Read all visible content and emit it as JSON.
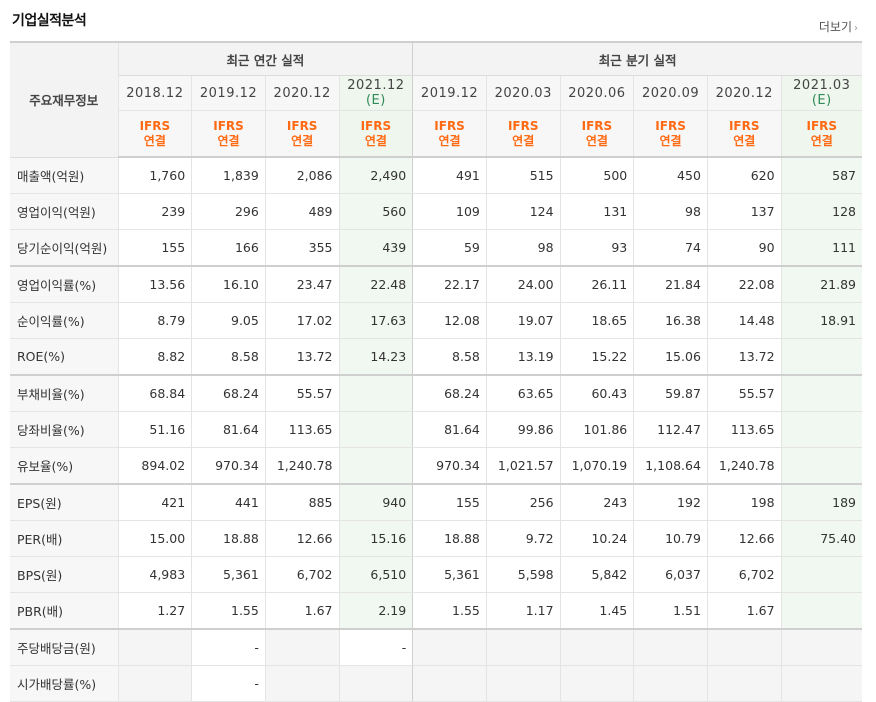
{
  "header": {
    "title": "기업실적분석",
    "more_label": "더보기",
    "more_icon": "chevron-right-icon"
  },
  "table": {
    "row_label_header": "주요재무정보",
    "group_annual": "최근 연간 실적",
    "group_quarter": "최근 분기 실적",
    "annual_periods": [
      "2018.12",
      "2019.12",
      "2020.12",
      "2021.12"
    ],
    "quarter_periods": [
      "2019.12",
      "2020.03",
      "2020.06",
      "2020.09",
      "2020.12",
      "2021.03"
    ],
    "estimate_mark": "(E)",
    "accounting_std": "IFRS",
    "consolidation": "연결",
    "rows": [
      {
        "label": "매출액(억원)",
        "values": [
          "1,760",
          "1,839",
          "2,086",
          "2,490",
          "491",
          "515",
          "500",
          "450",
          "620",
          "587"
        ]
      },
      {
        "label": "영업이익(억원)",
        "values": [
          "239",
          "296",
          "489",
          "560",
          "109",
          "124",
          "131",
          "98",
          "137",
          "128"
        ]
      },
      {
        "label": "당기순이익(억원)",
        "values": [
          "155",
          "166",
          "355",
          "439",
          "59",
          "98",
          "93",
          "74",
          "90",
          "111"
        ]
      },
      {
        "label": "영업이익률(%)",
        "values": [
          "13.56",
          "16.10",
          "23.47",
          "22.48",
          "22.17",
          "24.00",
          "26.11",
          "21.84",
          "22.08",
          "21.89"
        ]
      },
      {
        "label": "순이익률(%)",
        "values": [
          "8.79",
          "9.05",
          "17.02",
          "17.63",
          "12.08",
          "19.07",
          "18.65",
          "16.38",
          "14.48",
          "18.91"
        ]
      },
      {
        "label": "ROE(%)",
        "values": [
          "8.82",
          "8.58",
          "13.72",
          "14.23",
          "8.58",
          "13.19",
          "15.22",
          "15.06",
          "13.72",
          ""
        ]
      },
      {
        "label": "부채비율(%)",
        "values": [
          "68.84",
          "68.24",
          "55.57",
          "",
          "68.24",
          "63.65",
          "60.43",
          "59.87",
          "55.57",
          ""
        ]
      },
      {
        "label": "당좌비율(%)",
        "values": [
          "51.16",
          "81.64",
          "113.65",
          "",
          "81.64",
          "99.86",
          "101.86",
          "112.47",
          "113.65",
          ""
        ]
      },
      {
        "label": "유보율(%)",
        "values": [
          "894.02",
          "970.34",
          "1,240.78",
          "",
          "970.34",
          "1,021.57",
          "1,070.19",
          "1,108.64",
          "1,240.78",
          ""
        ]
      },
      {
        "label": "EPS(원)",
        "values": [
          "421",
          "441",
          "885",
          "940",
          "155",
          "256",
          "243",
          "192",
          "198",
          "189"
        ]
      },
      {
        "label": "PER(배)",
        "values": [
          "15.00",
          "18.88",
          "12.66",
          "15.16",
          "18.88",
          "9.72",
          "10.24",
          "10.79",
          "12.66",
          "75.40"
        ]
      },
      {
        "label": "BPS(원)",
        "values": [
          "4,983",
          "5,361",
          "6,702",
          "6,510",
          "5,361",
          "5,598",
          "5,842",
          "6,037",
          "6,702",
          ""
        ]
      },
      {
        "label": "PBR(배)",
        "values": [
          "1.27",
          "1.55",
          "1.67",
          "2.19",
          "1.55",
          "1.17",
          "1.45",
          "1.51",
          "1.67",
          ""
        ]
      },
      {
        "label": "주당배당금(원)",
        "values": [
          "",
          "-",
          "",
          "-",
          "",
          "",
          "",
          "",
          "",
          ""
        ]
      },
      {
        "label": "시가배당률(%)",
        "values": [
          "",
          "-",
          "",
          "",
          "",
          "",
          "",
          "",
          "",
          ""
        ]
      }
    ]
  }
}
